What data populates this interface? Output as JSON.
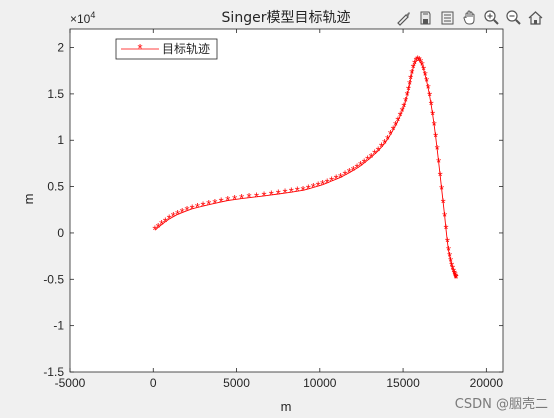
{
  "toolbar": {
    "icons": [
      "brush-icon",
      "save-icon",
      "legend-icon",
      "pan-icon",
      "zoom-in-icon",
      "zoom-out-icon",
      "home-icon"
    ]
  },
  "watermark": "CSDN @胭壳二",
  "chart_data": {
    "type": "line",
    "title": "Singer模型目标轨迹",
    "xlabel": "m",
    "ylabel": "m",
    "xlim": [
      -5000,
      21000
    ],
    "ylim": [
      -1.5,
      2.2
    ],
    "y_exponent_label": "×10",
    "y_exponent_power": "4",
    "xticks": [
      -5000,
      0,
      5000,
      10000,
      15000,
      20000
    ],
    "xtick_labels": [
      "-5000",
      "0",
      "5000",
      "10000",
      "15000",
      "20000"
    ],
    "yticks": [
      -1.5,
      -1,
      -0.5,
      0,
      0.5,
      1,
      1.5,
      2
    ],
    "ytick_labels": [
      "-1.5",
      "-1",
      "-0.5",
      "0",
      "0.5",
      "1",
      "1.5",
      "2"
    ],
    "grid": false,
    "legend_position": "top-left",
    "marker": "*",
    "color": "#ff0000",
    "series": [
      {
        "name": "目标轨迹",
        "x": [
          100,
          295,
          500,
          720,
          955,
          1200,
          1460,
          1735,
          2025,
          2330,
          2650,
          2985,
          3335,
          3700,
          4080,
          4475,
          4885,
          5310,
          5750,
          6200,
          6650,
          7090,
          7510,
          7910,
          8290,
          8650,
          8990,
          9310,
          9610,
          9895,
          10170,
          10440,
          10710,
          10980,
          11250,
          11515,
          11770,
          12010,
          12235,
          12450,
          12660,
          12870,
          13080,
          13290,
          13500,
          13700,
          13890,
          14070,
          14240,
          14400,
          14550,
          14690,
          14820,
          14940,
          15050,
          15150,
          15240,
          15320,
          15390,
          15460,
          15530,
          15610,
          15700,
          15790,
          15880,
          15970,
          16060,
          16150,
          16240,
          16330,
          16420,
          16510,
          16600,
          16690,
          16780,
          16870,
          16960,
          17050,
          17140,
          17230,
          17320,
          17410,
          17500,
          17580,
          17660,
          17730,
          17800,
          17860,
          17920,
          17980,
          18030,
          18080,
          18120,
          18150,
          18170,
          18180
        ],
        "y": [
          0.03,
          0.06,
          0.09,
          0.12,
          0.15,
          0.175,
          0.2,
          0.22,
          0.24,
          0.26,
          0.275,
          0.29,
          0.305,
          0.32,
          0.335,
          0.35,
          0.36,
          0.37,
          0.38,
          0.39,
          0.4,
          0.41,
          0.42,
          0.43,
          0.44,
          0.45,
          0.46,
          0.475,
          0.49,
          0.505,
          0.52,
          0.54,
          0.56,
          0.58,
          0.6,
          0.625,
          0.65,
          0.675,
          0.7,
          0.725,
          0.755,
          0.785,
          0.815,
          0.85,
          0.885,
          0.925,
          0.965,
          1.01,
          1.06,
          1.11,
          1.16,
          1.21,
          1.26,
          1.31,
          1.36,
          1.42,
          1.48,
          1.54,
          1.6,
          1.66,
          1.72,
          1.78,
          1.825,
          1.855,
          1.865,
          1.86,
          1.84,
          1.805,
          1.76,
          1.7,
          1.635,
          1.56,
          1.475,
          1.38,
          1.275,
          1.16,
          1.035,
          0.9,
          0.76,
          0.615,
          0.47,
          0.325,
          0.18,
          0.04,
          -0.095,
          -0.19,
          -0.255,
          -0.31,
          -0.355,
          -0.39,
          -0.42,
          -0.445,
          -0.46,
          -0.475,
          -0.485,
          -0.49
        ]
      }
    ]
  }
}
